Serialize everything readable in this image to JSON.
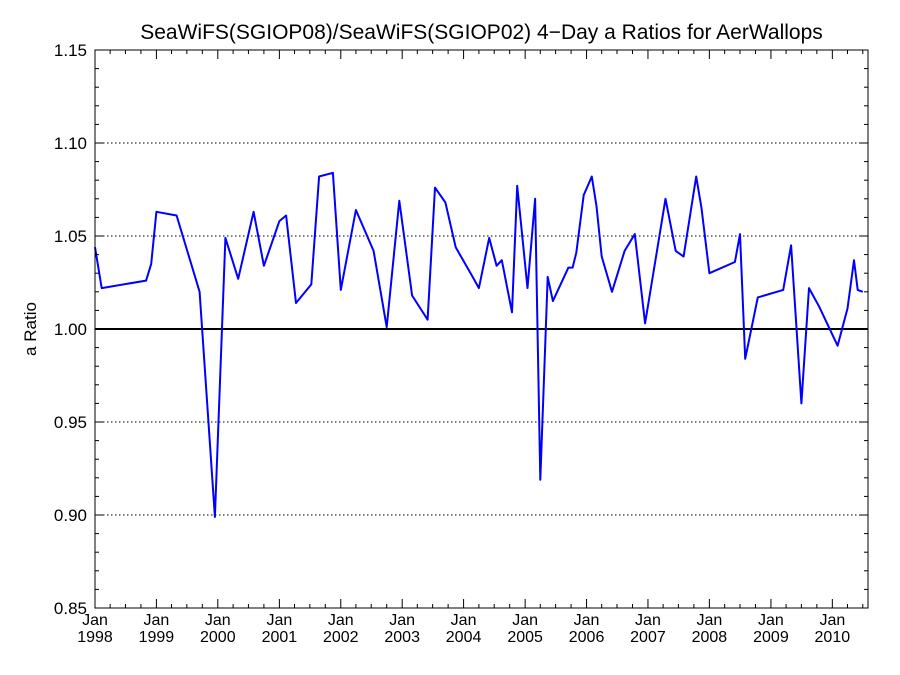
{
  "chart_data": {
    "type": "line",
    "title": "SeaWiFS(SGIOP08)/SeaWiFS(SGIOP02) 4−Day a Ratios for AerWallops",
    "xlabel": "",
    "ylabel": "a Ratio",
    "xlim": [
      "1998-01-01",
      "2010-08-01"
    ],
    "ylim": [
      0.85,
      1.15
    ],
    "y_ticks": [
      "0.85",
      "0.90",
      "0.95",
      "1.00",
      "1.05",
      "1.10",
      "1.15"
    ],
    "x_ticks": [
      {
        "date": "1998-01-01",
        "month": "Jan",
        "year": "1998"
      },
      {
        "date": "1999-01-01",
        "month": "Jan",
        "year": "1999"
      },
      {
        "date": "2000-01-01",
        "month": "Jan",
        "year": "2000"
      },
      {
        "date": "2001-01-01",
        "month": "Jan",
        "year": "2001"
      },
      {
        "date": "2002-01-01",
        "month": "Jan",
        "year": "2002"
      },
      {
        "date": "2003-01-01",
        "month": "Jan",
        "year": "2003"
      },
      {
        "date": "2004-01-01",
        "month": "Jan",
        "year": "2004"
      },
      {
        "date": "2005-01-01",
        "month": "Jan",
        "year": "2005"
      },
      {
        "date": "2006-01-01",
        "month": "Jan",
        "year": "2006"
      },
      {
        "date": "2007-01-01",
        "month": "Jan",
        "year": "2007"
      },
      {
        "date": "2008-01-01",
        "month": "Jan",
        "year": "2008"
      },
      {
        "date": "2009-01-01",
        "month": "Jan",
        "year": "2009"
      },
      {
        "date": "2010-01-01",
        "month": "Jan",
        "year": "2010"
      }
    ],
    "grid": "horizontal dotted at labeled y ticks",
    "reference_line": 1.0,
    "line_color": "#0000ff",
    "series": [
      {
        "x": [
          "1998-01-01",
          "1998-02-10",
          "1998-11-01",
          "1998-12-01",
          "1999-01-01",
          "1999-05-01",
          "1999-09-15",
          "1999-12-15",
          "2000-02-15",
          "2000-05-01",
          "2000-08-01",
          "2000-10-01",
          "2001-01-01",
          "2001-02-10",
          "2001-04-10",
          "2001-07-10",
          "2001-08-25",
          "2001-11-15",
          "2002-01-01",
          "2002-04-01",
          "2002-07-15",
          "2002-10-01",
          "2002-12-15",
          "2003-03-01",
          "2003-06-01",
          "2003-07-15",
          "2003-09-15",
          "2003-11-15",
          "2004-03-01",
          "2004-04-01",
          "2004-06-01",
          "2004-07-15",
          "2004-08-15",
          "2004-10-15",
          "2004-11-15",
          "2005-01-15",
          "2005-03-01",
          "2005-04-01",
          "2005-05-15",
          "2005-06-15",
          "2005-09-15",
          "2005-10-10",
          "2005-11-01",
          "2005-12-15",
          "2006-02-01",
          "2006-03-01",
          "2006-04-01",
          "2006-06-01",
          "2006-08-15",
          "2006-10-15",
          "2006-12-15",
          "2007-04-15",
          "2007-06-15",
          "2007-08-01",
          "2007-10-15",
          "2007-11-15",
          "2008-01-01",
          "2008-06-01",
          "2008-07-01",
          "2008-08-01",
          "2008-10-15",
          "2009-03-15",
          "2009-05-01",
          "2009-07-01",
          "2009-08-15",
          "2009-10-15",
          "2010-02-01",
          "2010-04-01",
          "2010-05-10",
          "2010-06-01",
          "2010-07-01"
        ],
        "y": [
          1.044,
          1.022,
          1.026,
          1.035,
          1.063,
          1.061,
          1.02,
          0.899,
          1.049,
          1.027,
          1.063,
          1.034,
          1.058,
          1.061,
          1.014,
          1.024,
          1.082,
          1.084,
          1.021,
          1.064,
          1.042,
          1.001,
          1.069,
          1.018,
          1.005,
          1.076,
          1.068,
          1.044,
          1.027,
          1.022,
          1.049,
          1.034,
          1.037,
          1.009,
          1.077,
          1.022,
          1.07,
          0.919,
          1.028,
          1.015,
          1.033,
          1.033,
          1.041,
          1.072,
          1.082,
          1.066,
          1.039,
          1.02,
          1.042,
          1.051,
          1.003,
          1.07,
          1.042,
          1.039,
          1.082,
          1.065,
          1.03,
          1.036,
          1.051,
          0.984,
          1.017,
          1.021,
          1.045,
          0.96,
          1.022,
          1.012,
          0.991,
          1.011,
          1.037,
          1.021,
          1.02
        ]
      }
    ]
  }
}
